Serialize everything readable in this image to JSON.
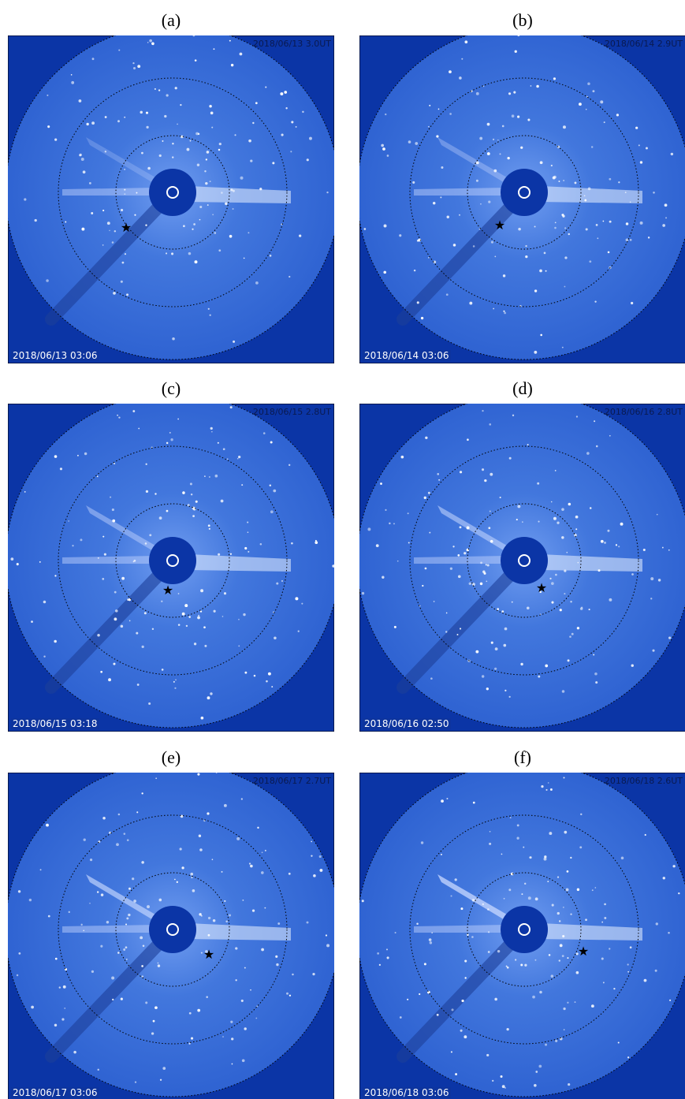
{
  "panels": [
    {
      "label": "(a)",
      "header": "2018/06/13   3.0UT",
      "footer": "2018/06/13 03:06"
    },
    {
      "label": "(b)",
      "header": "2018/06/14   2.9UT",
      "footer": "2018/06/14 03:06"
    },
    {
      "label": "(c)",
      "header": "2018/06/15   2.8UT",
      "footer": "2018/06/15 03:18"
    },
    {
      "label": "(d)",
      "header": "2018/06/16   2.8UT",
      "footer": "2018/06/16 02:50"
    },
    {
      "label": "(e)",
      "header": "2018/06/17   2.7UT",
      "footer": "2018/06/17 03:06"
    },
    {
      "label": "(f)",
      "header": "2018/06/18   2.6UT",
      "footer": "2018/06/18 03:06"
    }
  ]
}
